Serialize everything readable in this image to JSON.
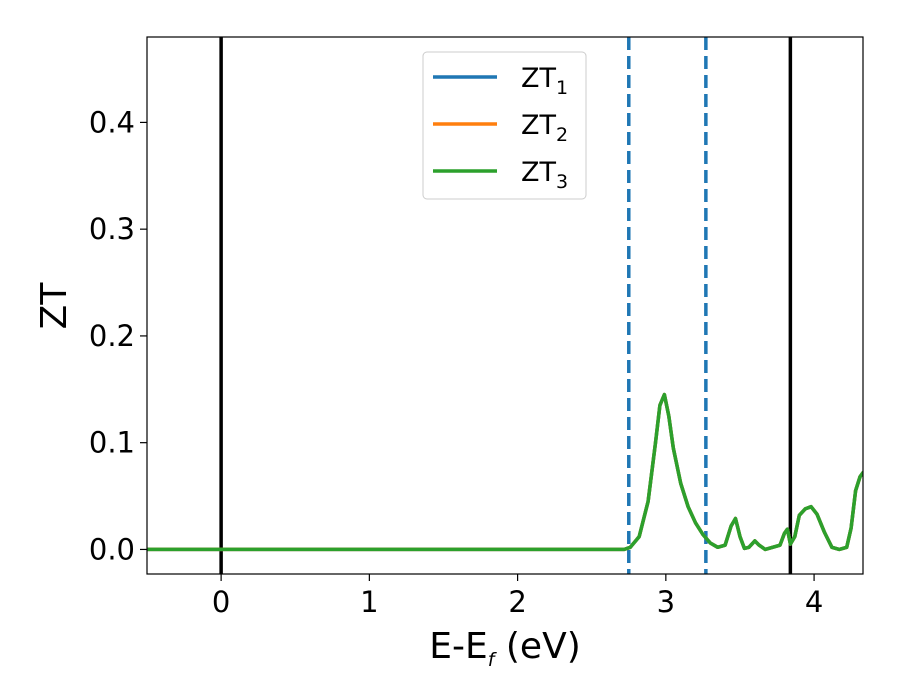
{
  "chart_data": {
    "type": "line",
    "xlabel_main": "E-E",
    "xlabel_sub": "f",
    "xlabel_unit": " (eV)",
    "ylabel": "ZT",
    "xlim": [
      -0.5,
      4.33
    ],
    "ylim": [
      -0.023,
      0.48
    ],
    "xticks": [
      0,
      1,
      2,
      3,
      4
    ],
    "yticks": [
      0.0,
      0.1,
      0.2,
      0.3,
      0.4
    ],
    "xtick_labels": [
      "0",
      "1",
      "2",
      "3",
      "4"
    ],
    "ytick_labels": [
      "0.0",
      "0.1",
      "0.2",
      "0.3",
      "0.4"
    ],
    "legend_position": "top-center",
    "vlines": [
      {
        "x": 0.0,
        "color": "#000000",
        "style": "solid"
      },
      {
        "x": 3.84,
        "color": "#000000",
        "style": "solid"
      },
      {
        "x": 2.75,
        "color": "#1f77b4",
        "style": "dashed"
      },
      {
        "x": 3.27,
        "color": "#1f77b4",
        "style": "dashed"
      }
    ],
    "series": [
      {
        "name_main": "ZT",
        "name_sub": "1",
        "color": "#1f77b4",
        "x": [
          -0.5,
          2.72,
          2.76,
          2.82,
          2.88,
          2.93,
          2.96,
          2.99,
          3.02,
          3.05,
          3.1,
          3.15,
          3.2,
          3.25,
          3.3,
          3.35,
          3.4,
          3.44,
          3.47,
          3.5,
          3.53,
          3.56,
          3.6,
          3.63,
          3.67,
          3.72,
          3.77,
          3.8,
          3.82,
          3.84,
          3.87,
          3.9,
          3.94,
          3.98,
          4.02,
          4.07,
          4.12,
          4.17,
          4.22,
          4.25,
          4.28,
          4.31,
          4.33
        ],
        "y": [
          0.0,
          0.0,
          0.002,
          0.012,
          0.045,
          0.1,
          0.135,
          0.145,
          0.125,
          0.095,
          0.062,
          0.04,
          0.025,
          0.014,
          0.006,
          0.002,
          0.004,
          0.022,
          0.029,
          0.012,
          0.001,
          0.002,
          0.008,
          0.004,
          0.0,
          0.002,
          0.004,
          0.015,
          0.019,
          0.005,
          0.012,
          0.032,
          0.038,
          0.04,
          0.033,
          0.016,
          0.002,
          0.0,
          0.002,
          0.02,
          0.055,
          0.068,
          0.072
        ]
      },
      {
        "name_main": "ZT",
        "name_sub": "2",
        "color": "#ff7f0e",
        "x": [
          -0.5,
          2.72,
          2.76,
          2.82,
          2.88,
          2.93,
          2.96,
          2.99,
          3.02,
          3.05,
          3.1,
          3.15,
          3.2,
          3.25,
          3.3,
          3.35,
          3.4,
          3.44,
          3.47,
          3.5,
          3.53,
          3.56,
          3.6,
          3.63,
          3.67,
          3.72,
          3.77,
          3.8,
          3.82,
          3.84,
          3.87,
          3.9,
          3.94,
          3.98,
          4.02,
          4.07,
          4.12,
          4.17,
          4.22,
          4.25,
          4.28,
          4.31,
          4.33
        ],
        "y": [
          0.0,
          0.0,
          0.002,
          0.012,
          0.045,
          0.1,
          0.135,
          0.145,
          0.125,
          0.095,
          0.062,
          0.04,
          0.025,
          0.014,
          0.006,
          0.002,
          0.004,
          0.022,
          0.029,
          0.012,
          0.001,
          0.002,
          0.008,
          0.004,
          0.0,
          0.002,
          0.004,
          0.015,
          0.019,
          0.005,
          0.012,
          0.032,
          0.038,
          0.04,
          0.033,
          0.016,
          0.002,
          0.0,
          0.002,
          0.02,
          0.055,
          0.068,
          0.072
        ]
      },
      {
        "name_main": "ZT",
        "name_sub": "3",
        "color": "#2ca02c",
        "x": [
          -0.5,
          2.72,
          2.76,
          2.82,
          2.88,
          2.93,
          2.96,
          2.99,
          3.02,
          3.05,
          3.1,
          3.15,
          3.2,
          3.25,
          3.3,
          3.35,
          3.4,
          3.44,
          3.47,
          3.5,
          3.53,
          3.56,
          3.6,
          3.63,
          3.67,
          3.72,
          3.77,
          3.8,
          3.82,
          3.84,
          3.87,
          3.9,
          3.94,
          3.98,
          4.02,
          4.07,
          4.12,
          4.17,
          4.22,
          4.25,
          4.28,
          4.31,
          4.33
        ],
        "y": [
          0.0,
          0.0,
          0.002,
          0.012,
          0.045,
          0.1,
          0.135,
          0.145,
          0.125,
          0.095,
          0.062,
          0.04,
          0.025,
          0.014,
          0.006,
          0.002,
          0.004,
          0.022,
          0.029,
          0.012,
          0.001,
          0.002,
          0.008,
          0.004,
          0.0,
          0.002,
          0.004,
          0.015,
          0.019,
          0.005,
          0.012,
          0.032,
          0.038,
          0.04,
          0.033,
          0.016,
          0.002,
          0.0,
          0.002,
          0.02,
          0.055,
          0.068,
          0.072
        ]
      }
    ]
  }
}
